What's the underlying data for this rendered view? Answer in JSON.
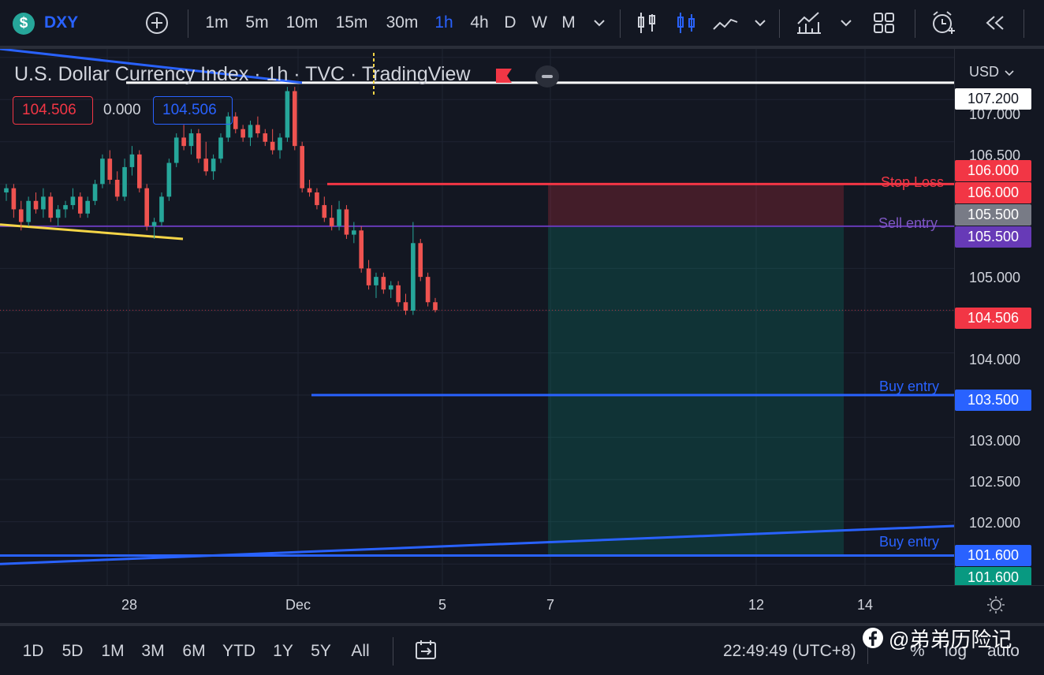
{
  "colors": {
    "background": "#131722",
    "up": "#26a69a",
    "down": "#ef5350",
    "accent": "#2962ff",
    "stop_line": "#f23645",
    "sell_line": "#673ab7",
    "trend": "#2962ff"
  },
  "toolbar": {
    "symbol_icon": "dollar-icon",
    "symbol": "DXY",
    "intervals": [
      "1m",
      "5m",
      "10m",
      "15m",
      "30m",
      "1h",
      "4h",
      "D",
      "W",
      "M"
    ],
    "active_interval": "1h"
  },
  "legend": {
    "title": "U.S. Dollar Currency Index · 1h · TVC · TradingView",
    "bid": "104.506",
    "spread": "0.000",
    "ask": "104.506"
  },
  "labels": {
    "stop_loss": "Stop Loss",
    "sell_entry": "Sell entry",
    "buy_entry_1": "Buy entry",
    "buy_entry_2": "Buy entry"
  },
  "price_scale": {
    "currency": "USD",
    "ticks": [
      "107.000",
      "106.500",
      "105.000",
      "104.000",
      "103.000",
      "102.500",
      "102.000"
    ],
    "badges": {
      "top_line": "107.200",
      "stop_upper": "106.000",
      "stop": "106.000",
      "sell_upper": "105.500",
      "sell": "105.500",
      "last": "104.506",
      "buy1": "103.500",
      "buy2": "101.600",
      "buy2_lower": "101.600"
    }
  },
  "time_scale": {
    "ticks": [
      "28",
      "Dec",
      "5",
      "7",
      "12",
      "14"
    ]
  },
  "bottom": {
    "ranges": [
      "1D",
      "5D",
      "1M",
      "3M",
      "6M",
      "YTD",
      "1Y",
      "5Y",
      "All"
    ],
    "clock": "22:49:49 (UTC+8)",
    "percent": "%",
    "log": "log",
    "auto": "auto",
    "watermark": "@弟弟历险记"
  },
  "chart_data": {
    "type": "candlestick",
    "ylim": [
      101.25,
      107.6
    ],
    "candles": [
      [
        105.9,
        106.0,
        105.8,
        105.95
      ],
      [
        105.95,
        106.0,
        105.6,
        105.7
      ],
      [
        105.7,
        105.8,
        105.45,
        105.55
      ],
      [
        105.55,
        105.85,
        105.5,
        105.8
      ],
      [
        105.8,
        105.9,
        105.65,
        105.7
      ],
      [
        105.7,
        105.95,
        105.6,
        105.85
      ],
      [
        105.85,
        105.9,
        105.55,
        105.6
      ],
      [
        105.6,
        105.75,
        105.5,
        105.7
      ],
      [
        105.7,
        105.8,
        105.6,
        105.75
      ],
      [
        105.75,
        105.95,
        105.7,
        105.85
      ],
      [
        105.85,
        105.9,
        105.6,
        105.65
      ],
      [
        105.65,
        105.85,
        105.6,
        105.8
      ],
      [
        105.8,
        106.05,
        105.75,
        106.0
      ],
      [
        106.0,
        106.35,
        105.95,
        106.3
      ],
      [
        106.3,
        106.4,
        106.0,
        106.05
      ],
      [
        106.05,
        106.15,
        105.8,
        105.85
      ],
      [
        105.85,
        106.3,
        105.8,
        106.2
      ],
      [
        106.2,
        106.45,
        106.1,
        106.35
      ],
      [
        106.35,
        106.4,
        105.9,
        105.95
      ],
      [
        105.95,
        106.0,
        105.45,
        105.5
      ],
      [
        105.5,
        105.6,
        105.35,
        105.55
      ],
      [
        105.55,
        105.9,
        105.5,
        105.85
      ],
      [
        105.85,
        106.3,
        105.8,
        106.25
      ],
      [
        106.25,
        106.6,
        106.2,
        106.55
      ],
      [
        106.55,
        106.7,
        106.4,
        106.45
      ],
      [
        106.45,
        106.65,
        106.35,
        106.6
      ],
      [
        106.6,
        106.65,
        106.25,
        106.3
      ],
      [
        106.3,
        106.5,
        106.1,
        106.15
      ],
      [
        106.15,
        106.35,
        106.05,
        106.3
      ],
      [
        106.3,
        106.6,
        106.25,
        106.55
      ],
      [
        106.55,
        106.85,
        106.5,
        106.8
      ],
      [
        106.8,
        106.85,
        106.6,
        106.65
      ],
      [
        106.65,
        106.7,
        106.5,
        106.55
      ],
      [
        106.55,
        106.75,
        106.45,
        106.7
      ],
      [
        106.7,
        106.8,
        106.55,
        106.6
      ],
      [
        106.6,
        106.65,
        106.45,
        106.5
      ],
      [
        106.5,
        106.65,
        106.35,
        106.4
      ],
      [
        106.4,
        106.6,
        106.3,
        106.55
      ],
      [
        106.55,
        107.15,
        106.5,
        107.1
      ],
      [
        107.1,
        107.15,
        106.4,
        106.45
      ],
      [
        106.45,
        106.5,
        105.9,
        105.95
      ],
      [
        105.95,
        106.05,
        105.85,
        105.9
      ],
      [
        105.9,
        105.95,
        105.7,
        105.75
      ],
      [
        105.75,
        105.85,
        105.55,
        105.6
      ],
      [
        105.6,
        105.75,
        105.45,
        105.5
      ],
      [
        105.5,
        105.8,
        105.45,
        105.7
      ],
      [
        105.7,
        105.75,
        105.35,
        105.4
      ],
      [
        105.4,
        105.55,
        105.3,
        105.45
      ],
      [
        105.45,
        105.5,
        104.95,
        105.0
      ],
      [
        105.0,
        105.1,
        104.75,
        104.8
      ],
      [
        104.8,
        104.95,
        104.65,
        104.9
      ],
      [
        104.9,
        104.95,
        104.7,
        104.75
      ],
      [
        104.75,
        104.85,
        104.65,
        104.8
      ],
      [
        104.8,
        104.85,
        104.55,
        104.6
      ],
      [
        104.6,
        104.7,
        104.45,
        104.5
      ],
      [
        104.5,
        105.55,
        104.45,
        105.3
      ],
      [
        105.3,
        105.35,
        104.85,
        104.9
      ],
      [
        104.9,
        104.95,
        104.55,
        104.6
      ],
      [
        104.6,
        104.65,
        104.48,
        104.506
      ]
    ]
  }
}
